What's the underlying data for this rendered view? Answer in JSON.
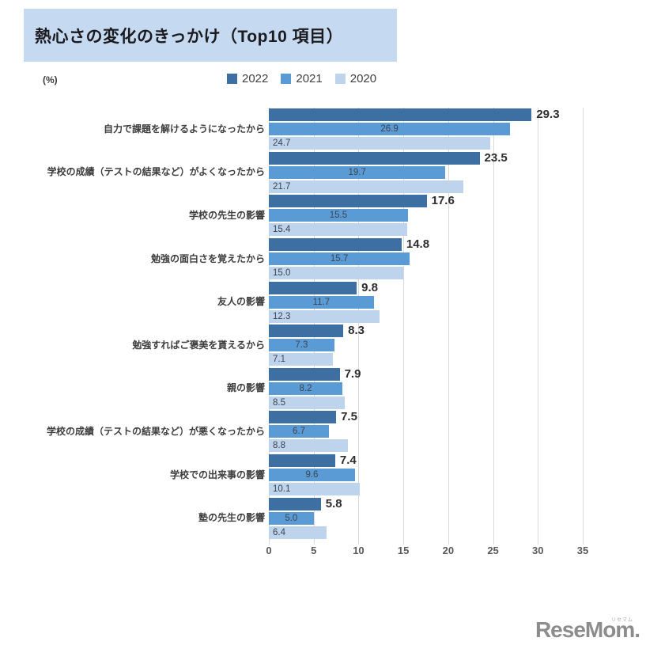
{
  "title": {
    "text": "熱心さの変化のきっかけ（Top10 項目）",
    "bg_color": "#C5D9F0"
  },
  "unit_label": "(%)",
  "legend": [
    {
      "label": "2022",
      "color": "#3D6FA3"
    },
    {
      "label": "2021",
      "color": "#5B9BD5"
    },
    {
      "label": "2020",
      "color": "#BDD4EC"
    }
  ],
  "chart_data": {
    "type": "bar",
    "orientation": "horizontal",
    "title": "熱心さの変化のきっかけ（Top10 項目）",
    "xlabel": "(%)",
    "ylabel": "",
    "xlim": [
      0,
      35
    ],
    "xticks": [
      0,
      5,
      10,
      15,
      20,
      25,
      30,
      35
    ],
    "grid": true,
    "legend_position": "top",
    "gridline_color": "#D9D9D9",
    "categories": [
      "自力で課題を解けるようになったから",
      "学校の成績（テストの結果など）がよくなったから",
      "学校の先生の影響",
      "勉強の面白さを覚えたから",
      "友人の影響",
      "勉強すればご褒美を貰えるから",
      "親の影響",
      "学校の成績（テストの結果など）が悪くなったから",
      "学校での出来事の影響",
      "塾の先生の影響"
    ],
    "series": [
      {
        "name": "2022",
        "color": "#3D6FA3",
        "label_position": "outside-end",
        "values": [
          29.3,
          23.5,
          17.6,
          14.8,
          9.8,
          8.3,
          7.9,
          7.5,
          7.4,
          5.8
        ]
      },
      {
        "name": "2021",
        "color": "#5B9BD5",
        "label_position": "center",
        "values": [
          26.9,
          19.7,
          15.5,
          15.7,
          11.7,
          7.3,
          8.2,
          6.7,
          9.6,
          5.0
        ]
      },
      {
        "name": "2020",
        "color": "#BDD4EC",
        "label_position": "inside-base",
        "values": [
          24.7,
          21.7,
          15.4,
          15.0,
          12.3,
          7.1,
          8.5,
          8.8,
          10.1,
          6.4
        ]
      }
    ]
  },
  "footer": {
    "logo_text": "ReseMom.",
    "logo_ruby": "リセマム"
  }
}
